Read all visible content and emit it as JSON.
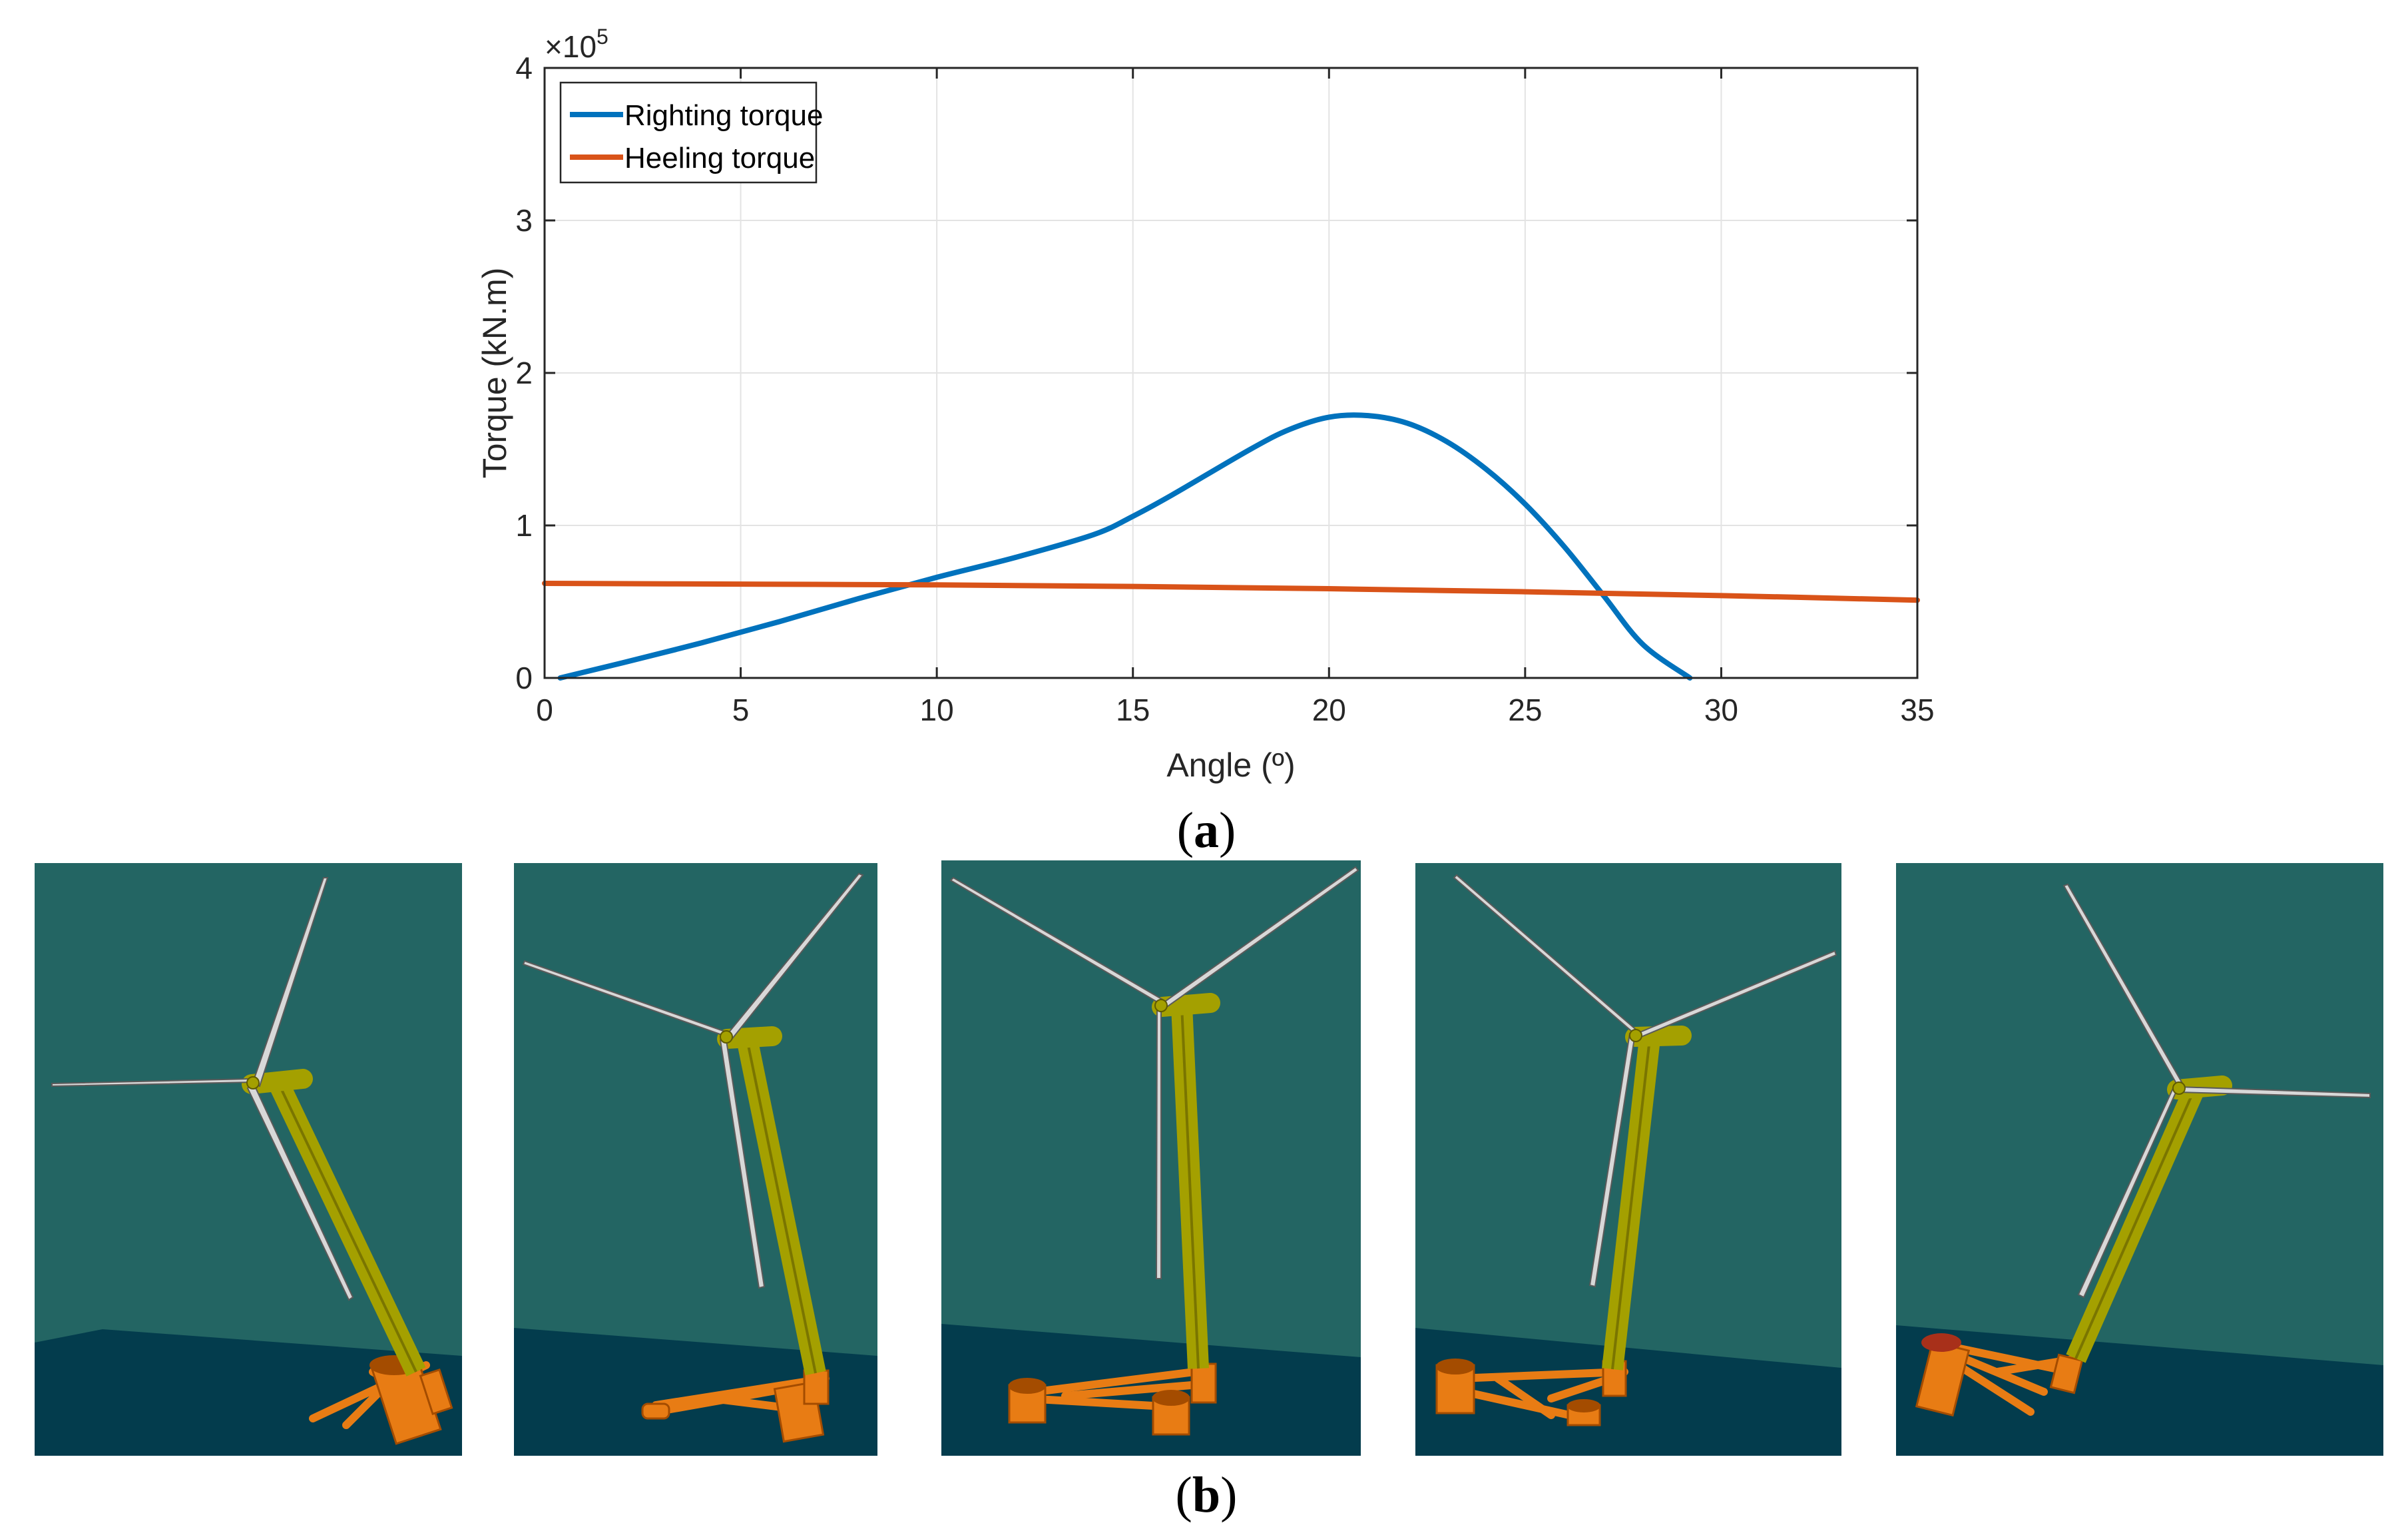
{
  "chart_data": {
    "type": "line",
    "title": "",
    "xlabel": "Angle (º)",
    "ylabel": "Torque (kN.m)",
    "xlim": [
      0,
      35
    ],
    "ylim": [
      0,
      400000
    ],
    "y_exponent_label": "×10",
    "y_exponent_power": "5",
    "xticks": [
      0,
      5,
      10,
      15,
      20,
      25,
      30,
      35
    ],
    "xtick_labels": [
      "0",
      "5",
      "10",
      "15",
      "20",
      "25",
      "30",
      "35"
    ],
    "yticks": [
      0,
      100000,
      200000,
      300000,
      400000
    ],
    "ytick_labels": [
      "0",
      "1",
      "2",
      "3",
      "4"
    ],
    "grid": true,
    "legend_position": "top-left",
    "series": [
      {
        "name": "Righting torque",
        "color": "#0072bd",
        "x": [
          0.4,
          2,
          4,
          6,
          8,
          10,
          12,
          14,
          15,
          16,
          18,
          19,
          20,
          21,
          22,
          23,
          24,
          25,
          26,
          27,
          28,
          29.2
        ],
        "y": [
          0,
          10000,
          23000,
          37000,
          52000,
          66000,
          79000,
          94000,
          106000,
          120000,
          150000,
          163000,
          171000,
          172000,
          167000,
          155000,
          137000,
          114000,
          86000,
          54000,
          22000,
          0
        ]
      },
      {
        "name": "Heeling torque",
        "color": "#d95319",
        "x": [
          0,
          5,
          10,
          15,
          20,
          25,
          30,
          35
        ],
        "y": [
          62000,
          61500,
          61000,
          60000,
          58500,
          56500,
          54000,
          51000
        ]
      }
    ]
  },
  "captions": {
    "a": "a",
    "b": "b"
  },
  "panels": [
    {
      "name": "heel-view-1"
    },
    {
      "name": "heel-view-2"
    },
    {
      "name": "heel-view-3"
    },
    {
      "name": "heel-view-4"
    },
    {
      "name": "heel-view-5"
    }
  ],
  "colors": {
    "sky": "#236563",
    "sea": "#033c4d",
    "tower": "#a4a000",
    "tower_dark": "#5f5a00",
    "platform": "#e87c14",
    "platform_dark": "#a44c00",
    "blade": "#d8d8d8",
    "blade_dark": "#5a5a5a"
  }
}
